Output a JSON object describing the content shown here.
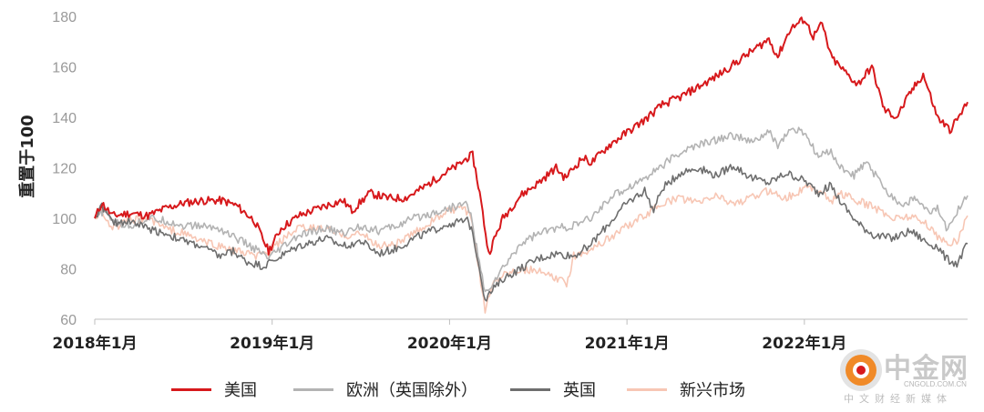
{
  "chart_data": {
    "type": "line",
    "title": "",
    "xlabel": "",
    "ylabel": "重置于100",
    "ylim": [
      60,
      180
    ],
    "yticks": [
      60,
      80,
      100,
      120,
      140,
      160,
      180
    ],
    "xlim": [
      2018.0,
      2022.92
    ],
    "xticks": [
      {
        "x": 2018.0,
        "label": "2018年1月"
      },
      {
        "x": 2019.0,
        "label": "2019年1月"
      },
      {
        "x": 2020.0,
        "label": "2020年1月"
      },
      {
        "x": 2021.0,
        "label": "2021年1月"
      },
      {
        "x": 2022.0,
        "label": "2022年1月"
      }
    ],
    "grid": false,
    "legend_position": "bottom",
    "series": [
      {
        "name": "美国",
        "color": "#d7191c",
        "points": [
          [
            2018.0,
            100
          ],
          [
            2018.04,
            106
          ],
          [
            2018.1,
            101
          ],
          [
            2018.2,
            102
          ],
          [
            2018.3,
            101
          ],
          [
            2018.4,
            104
          ],
          [
            2018.5,
            106
          ],
          [
            2018.6,
            107
          ],
          [
            2018.72,
            107
          ],
          [
            2018.8,
            105
          ],
          [
            2018.9,
            99
          ],
          [
            2018.98,
            87
          ],
          [
            2019.05,
            96
          ],
          [
            2019.15,
            101
          ],
          [
            2019.3,
            105
          ],
          [
            2019.4,
            107
          ],
          [
            2019.45,
            103
          ],
          [
            2019.55,
            110
          ],
          [
            2019.65,
            108
          ],
          [
            2019.75,
            108
          ],
          [
            2019.85,
            112
          ],
          [
            2019.95,
            117
          ],
          [
            2020.05,
            121
          ],
          [
            2020.1,
            124
          ],
          [
            2020.13,
            125
          ],
          [
            2020.17,
            110
          ],
          [
            2020.22,
            86
          ],
          [
            2020.3,
            100
          ],
          [
            2020.4,
            109
          ],
          [
            2020.5,
            114
          ],
          [
            2020.6,
            120
          ],
          [
            2020.65,
            116
          ],
          [
            2020.75,
            124
          ],
          [
            2020.8,
            122
          ],
          [
            2020.9,
            129
          ],
          [
            2021.0,
            134
          ],
          [
            2021.1,
            139
          ],
          [
            2021.2,
            145
          ],
          [
            2021.3,
            148
          ],
          [
            2021.4,
            152
          ],
          [
            2021.5,
            156
          ],
          [
            2021.6,
            161
          ],
          [
            2021.7,
            166
          ],
          [
            2021.8,
            171
          ],
          [
            2021.85,
            164
          ],
          [
            2021.92,
            175
          ],
          [
            2022.0,
            179
          ],
          [
            2022.05,
            172
          ],
          [
            2022.1,
            177
          ],
          [
            2022.15,
            164
          ],
          [
            2022.2,
            160
          ],
          [
            2022.3,
            153
          ],
          [
            2022.38,
            160
          ],
          [
            2022.45,
            143
          ],
          [
            2022.52,
            140
          ],
          [
            2022.6,
            150
          ],
          [
            2022.67,
            157
          ],
          [
            2022.75,
            140
          ],
          [
            2022.82,
            135
          ],
          [
            2022.87,
            140
          ],
          [
            2022.92,
            146
          ]
        ]
      },
      {
        "name": "欧洲（英国除外）",
        "color": "#b3b3b3",
        "points": [
          [
            2018.0,
            100
          ],
          [
            2018.05,
            103
          ],
          [
            2018.12,
            98
          ],
          [
            2018.2,
            97
          ],
          [
            2018.3,
            100
          ],
          [
            2018.4,
            99
          ],
          [
            2018.5,
            97
          ],
          [
            2018.6,
            97
          ],
          [
            2018.7,
            96
          ],
          [
            2018.8,
            92
          ],
          [
            2018.9,
            88
          ],
          [
            2018.98,
            84
          ],
          [
            2019.05,
            88
          ],
          [
            2019.15,
            93
          ],
          [
            2019.3,
            96
          ],
          [
            2019.4,
            94
          ],
          [
            2019.5,
            97
          ],
          [
            2019.6,
            95
          ],
          [
            2019.7,
            97
          ],
          [
            2019.8,
            100
          ],
          [
            2019.9,
            102
          ],
          [
            2020.0,
            104
          ],
          [
            2020.1,
            106
          ],
          [
            2020.12,
            101
          ],
          [
            2020.2,
            70
          ],
          [
            2020.3,
            80
          ],
          [
            2020.4,
            90
          ],
          [
            2020.5,
            94
          ],
          [
            2020.6,
            96
          ],
          [
            2020.7,
            97
          ],
          [
            2020.8,
            100
          ],
          [
            2020.9,
            108
          ],
          [
            2021.0,
            112
          ],
          [
            2021.1,
            116
          ],
          [
            2021.2,
            121
          ],
          [
            2021.3,
            126
          ],
          [
            2021.4,
            129
          ],
          [
            2021.5,
            131
          ],
          [
            2021.6,
            133
          ],
          [
            2021.7,
            130
          ],
          [
            2021.8,
            134
          ],
          [
            2021.85,
            129
          ],
          [
            2021.92,
            135
          ],
          [
            2022.0,
            134
          ],
          [
            2022.08,
            124
          ],
          [
            2022.15,
            127
          ],
          [
            2022.2,
            120
          ],
          [
            2022.28,
            117
          ],
          [
            2022.35,
            122
          ],
          [
            2022.45,
            112
          ],
          [
            2022.55,
            105
          ],
          [
            2022.62,
            108
          ],
          [
            2022.7,
            102
          ],
          [
            2022.75,
            104
          ],
          [
            2022.8,
            96
          ],
          [
            2022.86,
            103
          ],
          [
            2022.92,
            109
          ]
        ]
      },
      {
        "name": "英国",
        "color": "#6e6e6e",
        "points": [
          [
            2018.0,
            100
          ],
          [
            2018.04,
            105
          ],
          [
            2018.1,
            98
          ],
          [
            2018.2,
            99
          ],
          [
            2018.3,
            96
          ],
          [
            2018.4,
            94
          ],
          [
            2018.5,
            91
          ],
          [
            2018.6,
            89
          ],
          [
            2018.7,
            85
          ],
          [
            2018.78,
            87
          ],
          [
            2018.85,
            83
          ],
          [
            2018.95,
            81
          ],
          [
            2019.05,
            85
          ],
          [
            2019.15,
            89
          ],
          [
            2019.3,
            92
          ],
          [
            2019.4,
            89
          ],
          [
            2019.5,
            91
          ],
          [
            2019.6,
            86
          ],
          [
            2019.7,
            88
          ],
          [
            2019.8,
            92
          ],
          [
            2019.9,
            95
          ],
          [
            2020.0,
            98
          ],
          [
            2020.1,
            99
          ],
          [
            2020.13,
            95
          ],
          [
            2020.2,
            68
          ],
          [
            2020.3,
            76
          ],
          [
            2020.4,
            80
          ],
          [
            2020.5,
            84
          ],
          [
            2020.6,
            86
          ],
          [
            2020.7,
            85
          ],
          [
            2020.8,
            90
          ],
          [
            2020.9,
            98
          ],
          [
            2021.0,
            106
          ],
          [
            2021.1,
            111
          ],
          [
            2021.15,
            103
          ],
          [
            2021.2,
            112
          ],
          [
            2021.3,
            118
          ],
          [
            2021.4,
            120
          ],
          [
            2021.5,
            117
          ],
          [
            2021.6,
            121
          ],
          [
            2021.7,
            116
          ],
          [
            2021.8,
            114
          ],
          [
            2021.9,
            118
          ],
          [
            2022.0,
            115
          ],
          [
            2022.08,
            110
          ],
          [
            2022.15,
            113
          ],
          [
            2022.2,
            107
          ],
          [
            2022.3,
            98
          ],
          [
            2022.4,
            93
          ],
          [
            2022.5,
            92
          ],
          [
            2022.6,
            95
          ],
          [
            2022.7,
            90
          ],
          [
            2022.75,
            89
          ],
          [
            2022.8,
            84
          ],
          [
            2022.86,
            82
          ],
          [
            2022.92,
            90
          ]
        ]
      },
      {
        "name": "新兴市场",
        "color": "#f7c6b4",
        "points": [
          [
            2018.0,
            100
          ],
          [
            2018.04,
            103
          ],
          [
            2018.1,
            96
          ],
          [
            2018.2,
            99
          ],
          [
            2018.3,
            100
          ],
          [
            2018.4,
            96
          ],
          [
            2018.5,
            94
          ],
          [
            2018.6,
            91
          ],
          [
            2018.7,
            89
          ],
          [
            2018.8,
            87
          ],
          [
            2018.9,
            85
          ],
          [
            2018.98,
            86
          ],
          [
            2019.05,
            91
          ],
          [
            2019.15,
            96
          ],
          [
            2019.3,
            96
          ],
          [
            2019.4,
            93
          ],
          [
            2019.5,
            94
          ],
          [
            2019.6,
            89
          ],
          [
            2019.7,
            90
          ],
          [
            2019.8,
            94
          ],
          [
            2019.9,
            99
          ],
          [
            2020.0,
            103
          ],
          [
            2020.08,
            104
          ],
          [
            2020.12,
            100
          ],
          [
            2020.2,
            64
          ],
          [
            2020.25,
            75
          ],
          [
            2020.3,
            78
          ],
          [
            2020.4,
            80
          ],
          [
            2020.5,
            79
          ],
          [
            2020.6,
            76
          ],
          [
            2020.66,
            74
          ],
          [
            2020.7,
            85
          ],
          [
            2020.8,
            88
          ],
          [
            2020.9,
            92
          ],
          [
            2021.0,
            97
          ],
          [
            2021.1,
            101
          ],
          [
            2021.2,
            106
          ],
          [
            2021.3,
            108
          ],
          [
            2021.4,
            106
          ],
          [
            2021.5,
            109
          ],
          [
            2021.6,
            106
          ],
          [
            2021.7,
            108
          ],
          [
            2021.8,
            111
          ],
          [
            2021.9,
            108
          ],
          [
            2022.0,
            112
          ],
          [
            2022.1,
            111
          ],
          [
            2022.15,
            106
          ],
          [
            2022.2,
            110
          ],
          [
            2022.3,
            107
          ],
          [
            2022.4,
            104
          ],
          [
            2022.5,
            100
          ],
          [
            2022.6,
            101
          ],
          [
            2022.7,
            97
          ],
          [
            2022.75,
            93
          ],
          [
            2022.8,
            90
          ],
          [
            2022.86,
            91
          ],
          [
            2022.92,
            101
          ]
        ]
      }
    ]
  },
  "watermark": {
    "title": "中金网",
    "url": "CNGOLD.COM.CN",
    "subtitle": "中文财经新媒体"
  }
}
